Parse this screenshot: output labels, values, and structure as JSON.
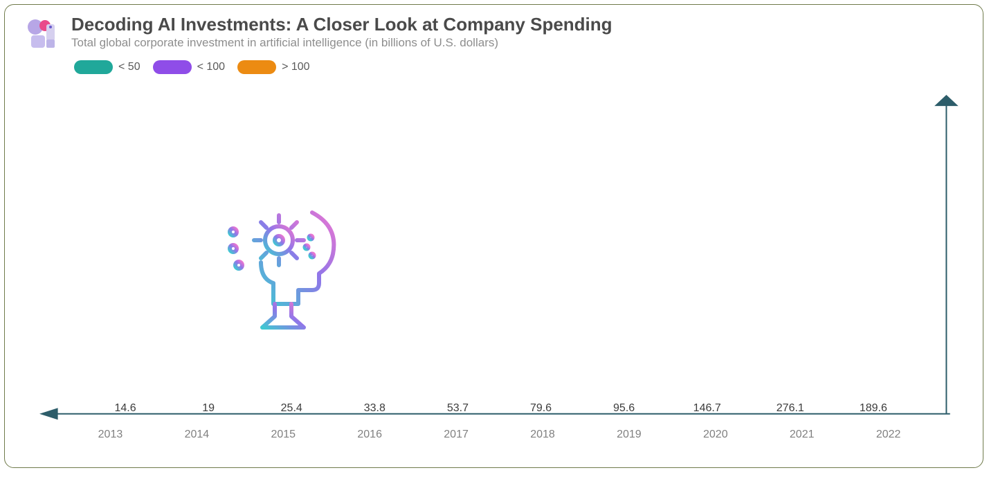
{
  "header": {
    "title": "Decoding AI Investments: A Closer Look at Company Spending",
    "subtitle": "Total global corporate investment in artificial intelligence (in billions of U.S. dollars)"
  },
  "legend": {
    "items": [
      {
        "label": "< 50",
        "color": "#20a89a"
      },
      {
        "label": "< 100",
        "color": "#8f4de8"
      },
      {
        "label": "> 100",
        "color": "#ec8b12"
      }
    ]
  },
  "chart": {
    "type": "bar",
    "axis_color": "#2d5d6a",
    "axis_stroke_width": 2,
    "background_color": "#ffffff",
    "x_label_color": "#808080",
    "x_label_fontsize": 16,
    "value_label_color": "#3b3b3b",
    "value_label_fontsize": 16,
    "y_max": 300,
    "y_min": 0,
    "bar_width_ratio": 0.78,
    "bar_corner_radius": 6,
    "color_rules": {
      "lt50": "#20a89a",
      "lt100": "#8f4de8",
      "gte100": "#ec8b12"
    },
    "categories": [
      "2013",
      "2014",
      "2015",
      "2016",
      "2017",
      "2018",
      "2019",
      "2020",
      "2021",
      "2022"
    ],
    "values": [
      14.6,
      19,
      25.4,
      33.8,
      53.7,
      79.6,
      95.6,
      146.7,
      276.1,
      189.6
    ],
    "bar_colors": [
      "#20a89a",
      "#20a89a",
      "#20a89a",
      "#20a89a",
      "#8f4de8",
      "#8f4de8",
      "#8f4de8",
      "#ec8b12",
      "#ec8b12",
      "#ec8b12"
    ]
  },
  "title_fontsize": 26,
  "title_color": "#4a4a4a",
  "subtitle_fontsize": 17,
  "subtitle_color": "#8d8d8d",
  "card_border_color": "#6f7a4a",
  "card_border_radius": 14
}
